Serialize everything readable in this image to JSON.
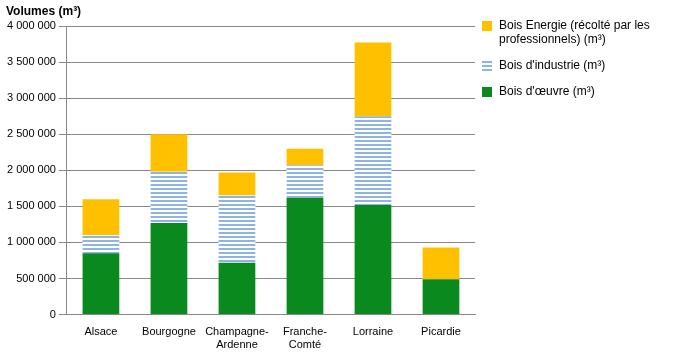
{
  "chart_data": {
    "type": "bar",
    "stacked": true,
    "grid": true,
    "legend": "right",
    "y_label": "Volumes (m³)",
    "categories": [
      "Alsace",
      "Bourgogne",
      "Champagne-Ardenne",
      "Franche-Comté",
      "Lorraine",
      "Picardie"
    ],
    "series": [
      {
        "name": "Bois d'œuvre (m³)",
        "color": "#0a8a1e",
        "values": [
          850000,
          1270000,
          720000,
          1620000,
          1520000,
          490000
        ]
      },
      {
        "name": "Bois d'industrie (m³)",
        "color": "#8db4e2",
        "values": [
          250000,
          710000,
          930000,
          450000,
          1230000,
          0
        ]
      },
      {
        "name": "Bois Energie (récolté par les professionnels)  (m³)",
        "color": "#ffc000",
        "values": [
          500000,
          520000,
          320000,
          230000,
          1020000,
          440000
        ]
      }
    ],
    "ylim": [
      0,
      4000000
    ],
    "yticks": [
      0,
      {
        "value": 500000,
        "label": "500 000"
      },
      {
        "value": 1000000,
        "label": "1 000 000"
      },
      {
        "value": 1500000,
        "label": "1 500 000"
      },
      {
        "value": 2000000,
        "label": "2 000 000"
      },
      {
        "value": 2500000,
        "label": "2 500 000"
      },
      {
        "value": 3000000,
        "label": "3 000 000"
      },
      {
        "value": 3500000,
        "label": "3 500 000"
      },
      {
        "value": 4000000,
        "label": "4 000 000"
      }
    ]
  }
}
